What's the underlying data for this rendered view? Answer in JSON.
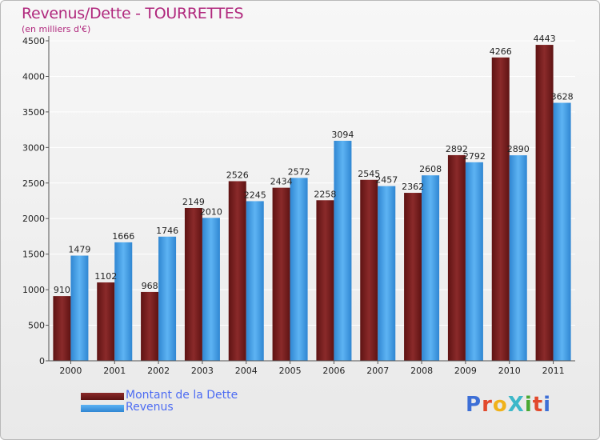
{
  "header": {
    "title": "Revenus/Dette - TOURRETTES",
    "subtitle": "(en milliers d'€)"
  },
  "legend": {
    "items": [
      {
        "label": "Montant de la Dette",
        "color": "#7a1c1c"
      },
      {
        "label": "Revenus",
        "color": "#3d9ee8"
      }
    ]
  },
  "logo": {
    "text": "ProXiti",
    "colors": [
      "#3d6fd6",
      "#e2492c",
      "#f0b21a",
      "#3db8c9",
      "#4aa832",
      "#e2492c",
      "#3d6fd6"
    ]
  },
  "chart_data": {
    "type": "bar",
    "title": "Revenus/Dette - TOURRETTES",
    "ylabel": "(en milliers d'€)",
    "xlabel": "",
    "categories": [
      "2000",
      "2001",
      "2002",
      "2003",
      "2004",
      "2005",
      "2006",
      "2007",
      "2008",
      "2009",
      "2010",
      "2011"
    ],
    "series": [
      {
        "name": "Montant de la Dette",
        "color": "#7a1c1c",
        "values": [
          910,
          1102,
          968,
          2149,
          2526,
          2434,
          2258,
          2545,
          2362,
          2892,
          4266,
          4443
        ]
      },
      {
        "name": "Revenus",
        "color": "#3d9ee8",
        "values": [
          1479,
          1666,
          1746,
          2010,
          2245,
          2572,
          3094,
          2457,
          2608,
          2792,
          2890,
          3628
        ]
      }
    ],
    "ylim": [
      0,
      4500
    ],
    "yticks": [
      0,
      500,
      1000,
      1500,
      2000,
      2500,
      3000,
      3500,
      4000,
      4500
    ],
    "grid": true,
    "legend_position": "bottom-left"
  }
}
